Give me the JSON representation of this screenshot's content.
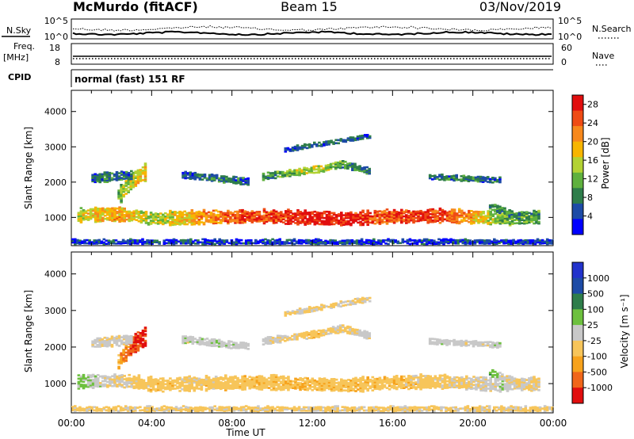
{
  "header": {
    "station": "McMurdo (fitACF)",
    "beam": "Beam 15",
    "date": "03/Nov/2019"
  },
  "panels": {
    "sky_label": "N.Sky",
    "search_label": "N.Search",
    "sky_ticks": [
      "10^5",
      "10^0"
    ],
    "search_ticks": [
      "10^5",
      "10^0"
    ],
    "freq_label_1": "Freq.",
    "freq_label_2": "[MHz]",
    "freq_ticks": [
      "18",
      "8"
    ],
    "nave_label": "Nave",
    "nave_ticks": [
      "60",
      "0"
    ],
    "cpid_label": "CPID",
    "cpid_text": "normal (fast) 151 RF"
  },
  "chart_data": [
    {
      "type": "heatmap",
      "title": "",
      "xlabel": "Time UT",
      "ylabel": "Slant Range [km]",
      "x_ticks": [
        "00:00",
        "04:00",
        "08:00",
        "12:00",
        "16:00",
        "20:00",
        "00:00"
      ],
      "y_ticks": [
        "1000",
        "2000",
        "3000",
        "4000"
      ],
      "xlim": [
        0,
        24
      ],
      "ylim": [
        200,
        4600
      ],
      "colorbar": {
        "label": "Power [dB]",
        "ticks": [
          "4",
          "8",
          "12",
          "16",
          "20",
          "24",
          "28"
        ],
        "range": [
          0,
          30
        ],
        "colors": [
          "#0000ff",
          "#1d4ba6",
          "#2e7d4a",
          "#5fb13e",
          "#b3d233",
          "#f7b500",
          "#f7881c",
          "#ef4b14",
          "#e10e0e"
        ]
      },
      "bands": [
        {
          "t0": 0.3,
          "t1": 23.3,
          "center_km": [
            1050,
            1080,
            960,
            990,
            1010,
            1020,
            980,
            950,
            1010,
            1040,
            1020,
            960,
            1000
          ],
          "width_km": 350,
          "value": [
            16,
            20,
            14,
            20,
            24,
            26,
            28,
            28,
            24,
            26,
            22,
            12,
            10
          ]
        },
        {
          "t0": 2.3,
          "t1": 3.7,
          "center_km": [
            1600,
            2050,
            2300
          ],
          "width_km": 450,
          "value": [
            12,
            16,
            18
          ]
        },
        {
          "t0": 1.0,
          "t1": 3.0,
          "center_km": [
            2100,
            2150,
            2200
          ],
          "width_km": 250,
          "value": [
            6,
            8,
            6
          ]
        },
        {
          "t0": 5.5,
          "t1": 8.8,
          "center_km": [
            2200,
            2100,
            2000
          ],
          "width_km": 180,
          "value": [
            6,
            8,
            6
          ]
        },
        {
          "t0": 9.5,
          "t1": 14.8,
          "center_km": [
            2150,
            2250,
            2350,
            2500,
            2300
          ],
          "width_km": 180,
          "value": [
            8,
            12,
            16,
            10,
            8
          ]
        },
        {
          "t0": 17.8,
          "t1": 21.3,
          "center_km": [
            2150,
            2100,
            2050
          ],
          "width_km": 150,
          "value": [
            6,
            8,
            6
          ]
        },
        {
          "t0": 20.8,
          "t1": 22.3,
          "center_km": [
            1300,
            1150,
            1000
          ],
          "width_km": 180,
          "value": [
            8,
            10,
            8
          ]
        },
        {
          "t0": 10.6,
          "t1": 14.8,
          "center_km": [
            2900,
            3100,
            3300
          ],
          "width_km": 120,
          "value": [
            6,
            6,
            6
          ]
        },
        {
          "t0": 0.0,
          "t1": 24.0,
          "center_km": [
            300,
            300
          ],
          "width_km": 120,
          "value": [
            4,
            4
          ]
        }
      ]
    },
    {
      "type": "heatmap",
      "title": "",
      "xlabel": "Time UT",
      "ylabel": "Slant Range [km]",
      "x_ticks": [
        "00:00",
        "04:00",
        "08:00",
        "12:00",
        "16:00",
        "20:00",
        "00:00"
      ],
      "y_ticks": [
        "1000",
        "2000",
        "3000",
        "4000"
      ],
      "xlim": [
        0,
        24
      ],
      "ylim": [
        200,
        4600
      ],
      "colorbar": {
        "label": "Velocity [m s⁻¹]",
        "ticks": [
          "1000",
          "500",
          "100",
          "25",
          "-25",
          "-100",
          "-500",
          "-1000"
        ],
        "range": [
          -1200,
          1200
        ],
        "colors": [
          "#e10e0e",
          "#f0661a",
          "#f7a21c",
          "#f7c55a",
          "#c8c8c8",
          "#6dc03e",
          "#2e7d4a",
          "#1d4ba6",
          "#2233cc"
        ]
      },
      "bands": [
        {
          "t0": 0.3,
          "t1": 23.3,
          "center_km": [
            1050,
            1080,
            960,
            990,
            1010,
            1020,
            980,
            950,
            1010,
            1040,
            1020,
            960,
            1000
          ],
          "width_km": 350,
          "value": [
            200,
            -150,
            -300,
            -250,
            -280,
            -300,
            -320,
            -300,
            -280,
            -260,
            -200,
            50,
            -200
          ]
        },
        {
          "t0": 2.3,
          "t1": 3.7,
          "center_km": [
            1600,
            2050,
            2300
          ],
          "width_km": 450,
          "value": [
            -500,
            -900,
            -1000
          ]
        },
        {
          "t0": 1.0,
          "t1": 3.0,
          "center_km": [
            2100,
            2150,
            2200
          ],
          "width_km": 250,
          "value": [
            0,
            -150,
            0
          ]
        },
        {
          "t0": 5.5,
          "t1": 8.8,
          "center_km": [
            2200,
            2100,
            2000
          ],
          "width_km": 180,
          "value": [
            0,
            60,
            0
          ]
        },
        {
          "t0": 9.5,
          "t1": 14.8,
          "center_km": [
            2150,
            2250,
            2350,
            2500,
            2300
          ],
          "width_km": 180,
          "value": [
            0,
            -150,
            -300,
            -150,
            0
          ]
        },
        {
          "t0": 17.8,
          "t1": 21.3,
          "center_km": [
            2150,
            2100,
            2050
          ],
          "width_km": 150,
          "value": [
            0,
            0,
            0
          ]
        },
        {
          "t0": 20.8,
          "t1": 22.3,
          "center_km": [
            1300,
            1150,
            1000
          ],
          "width_km": 180,
          "value": [
            300,
            -100,
            -300
          ]
        },
        {
          "t0": 10.6,
          "t1": 14.8,
          "center_km": [
            2900,
            3100,
            3300
          ],
          "width_km": 120,
          "value": [
            -150,
            -150,
            -150
          ]
        },
        {
          "t0": 0.0,
          "t1": 24.0,
          "center_km": [
            300,
            300
          ],
          "width_km": 120,
          "value": [
            -200,
            -200
          ]
        }
      ]
    }
  ]
}
